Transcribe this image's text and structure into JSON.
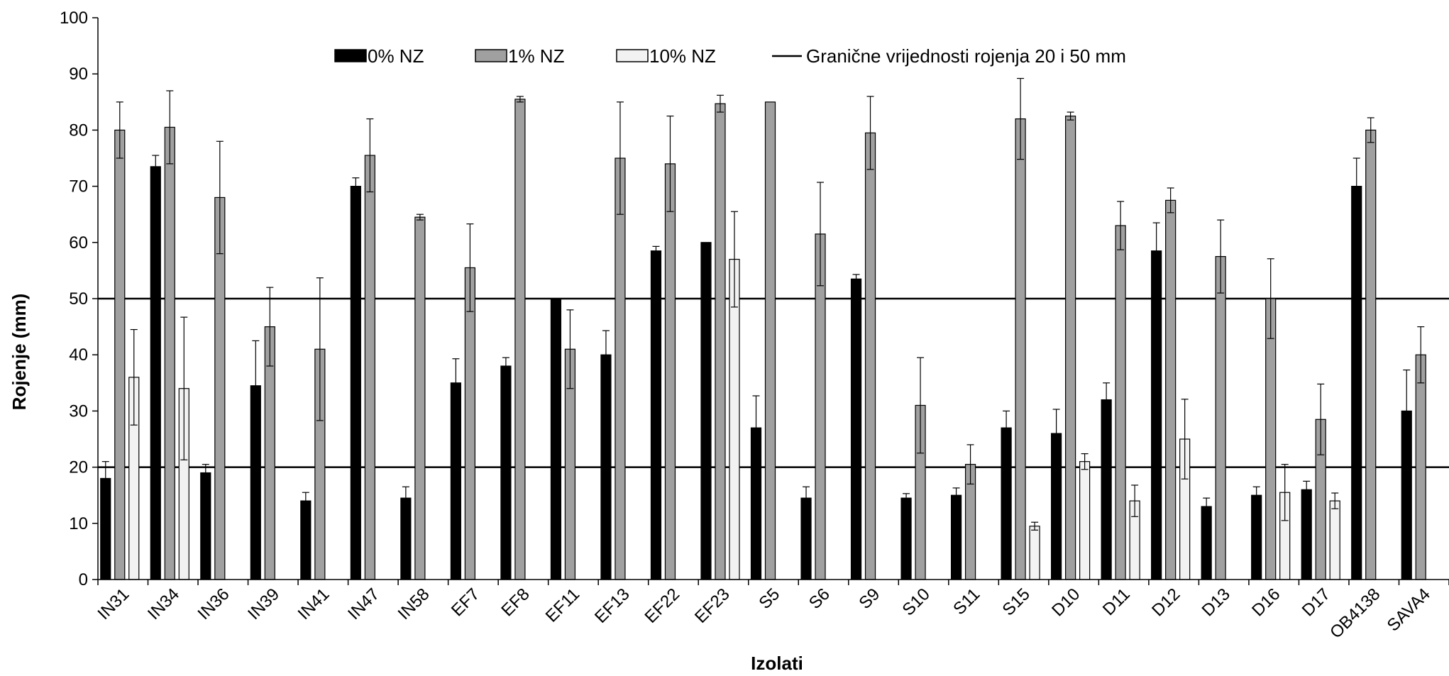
{
  "chart_data": {
    "type": "bar",
    "xlabel": "Izolati",
    "ylabel": "Rojenje (mm)",
    "ylim": [
      0,
      100
    ],
    "yticks": [
      0,
      10,
      20,
      30,
      40,
      50,
      60,
      70,
      80,
      90,
      100
    ],
    "grid": false,
    "legend_position": "top",
    "categories": [
      "IN31",
      "IN34",
      "IN36",
      "IN39",
      "IN41",
      "IN47",
      "IN58",
      "EF7",
      "EF8",
      "EF11",
      "EF13",
      "EF22",
      "EF23",
      "S5",
      "S6",
      "S9",
      "S10",
      "S11",
      "S15",
      "D10",
      "D11",
      "D12",
      "D13",
      "D16",
      "D17",
      "OB4138",
      "SAVA4"
    ],
    "series": [
      {
        "name": "0% NZ",
        "color": "#000000",
        "values": [
          18,
          73.5,
          19,
          34.5,
          14,
          70,
          14.5,
          35,
          38,
          50,
          40,
          58.5,
          60,
          27,
          14.5,
          53.5,
          14.5,
          15,
          27,
          26,
          32,
          58.5,
          13,
          15,
          16,
          70,
          30
        ],
        "errors": [
          3,
          2,
          1.5,
          8,
          1.5,
          1.5,
          2,
          4.3,
          1.5,
          0,
          4.3,
          0.8,
          0,
          5.7,
          2,
          0.8,
          0.8,
          1.3,
          3,
          4.3,
          3,
          5,
          1.5,
          1.5,
          1.5,
          5,
          7.3
        ]
      },
      {
        "name": "1% NZ",
        "color": "#a0a0a0",
        "values": [
          80,
          80.5,
          68,
          45,
          41,
          75.5,
          64.5,
          55.5,
          85.5,
          41,
          75,
          74,
          84.7,
          85,
          61.5,
          79.5,
          31,
          20.5,
          82,
          82.5,
          63,
          67.5,
          57.5,
          50,
          28.5,
          80,
          40
        ],
        "errors": [
          5,
          6.5,
          10,
          7,
          12.7,
          6.5,
          0.5,
          7.8,
          0.5,
          7,
          10,
          8.5,
          1.5,
          0,
          9.2,
          6.5,
          8.5,
          3.5,
          7.2,
          0.7,
          4.3,
          2.2,
          6.5,
          7.1,
          6.3,
          2.2,
          5
        ]
      },
      {
        "name": "10% NZ",
        "color": "#f2f2f2",
        "values": [
          36,
          34,
          null,
          null,
          null,
          null,
          null,
          null,
          null,
          null,
          null,
          null,
          57,
          null,
          null,
          null,
          null,
          null,
          9.5,
          21,
          14,
          25,
          null,
          15.5,
          14,
          null,
          null
        ],
        "errors": [
          8.5,
          12.7,
          null,
          null,
          null,
          null,
          null,
          null,
          null,
          null,
          null,
          null,
          8.5,
          null,
          null,
          null,
          null,
          null,
          0.7,
          1.4,
          2.8,
          7.1,
          null,
          5,
          1.4,
          null,
          null
        ]
      }
    ],
    "reference_lines": {
      "name": "Granične vrijednosti rojenja 20 i 50 mm",
      "values": [
        20,
        50
      ],
      "color": "#000000"
    }
  }
}
